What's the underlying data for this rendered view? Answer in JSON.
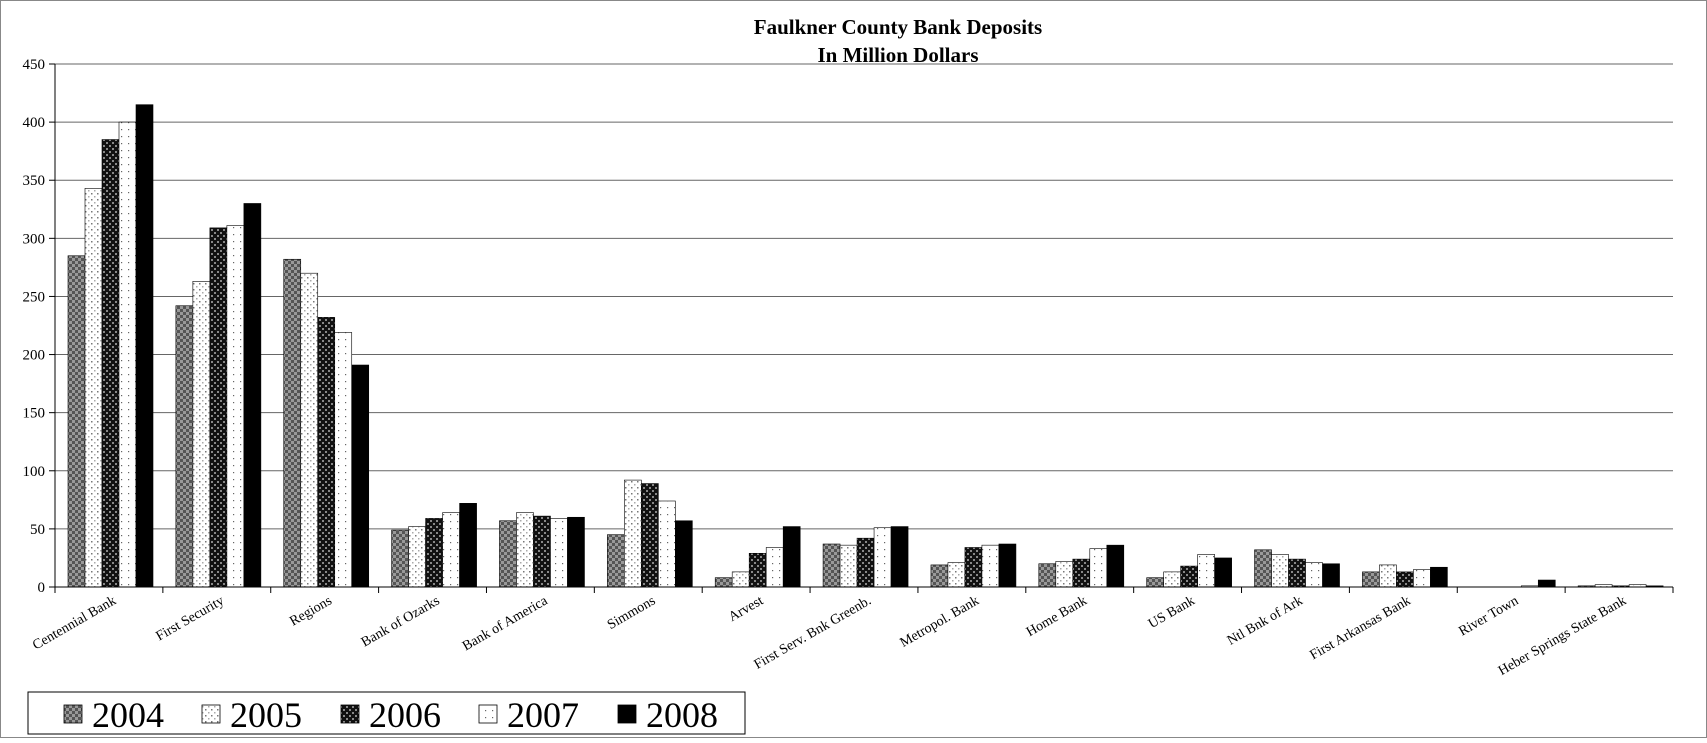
{
  "chart_data": {
    "type": "bar",
    "title": "Faulkner County Bank Deposits",
    "subtitle": "In Million Dollars",
    "xlabel": "",
    "ylabel": "",
    "ylim": [
      0,
      450
    ],
    "yticks": [
      "0",
      "50",
      "100",
      "150",
      "200",
      "250",
      "300",
      "350",
      "400",
      "450"
    ],
    "grid": true,
    "legend_position": "bottom-left",
    "categories": [
      "Centennial Bank",
      "First Security",
      "Regions",
      "Bank of Ozarks",
      "Bank of America",
      "Simmons",
      "Arvest",
      "First Serv. Bnk Greenb.",
      "Metropol. Bank",
      "Home Bank",
      "US Bank",
      "Ntl Bnk of Ark",
      "First Arkansas Bank",
      "River Town",
      "Heber Springs State Bank"
    ],
    "series": [
      {
        "name": "2004",
        "pattern": "dark-checker",
        "values": [
          285,
          242,
          282,
          49,
          57,
          45,
          8,
          37,
          19,
          20,
          8,
          32,
          13,
          0,
          1
        ]
      },
      {
        "name": "2005",
        "pattern": "light-dots",
        "values": [
          343,
          263,
          270,
          52,
          64,
          92,
          13,
          36,
          21,
          22,
          13,
          28,
          19,
          0,
          2
        ]
      },
      {
        "name": "2006",
        "pattern": "black-checker",
        "values": [
          385,
          309,
          232,
          59,
          61,
          89,
          29,
          42,
          34,
          24,
          18,
          24,
          13,
          0,
          1
        ]
      },
      {
        "name": "2007",
        "pattern": "white-sparse",
        "values": [
          400,
          311,
          219,
          64,
          59,
          74,
          34,
          51,
          36,
          33,
          28,
          21,
          15,
          1,
          2
        ]
      },
      {
        "name": "2008",
        "pattern": "solid-black",
        "values": [
          415,
          330,
          191,
          72,
          60,
          57,
          52,
          52,
          37,
          36,
          25,
          20,
          17,
          6,
          1
        ]
      }
    ]
  }
}
